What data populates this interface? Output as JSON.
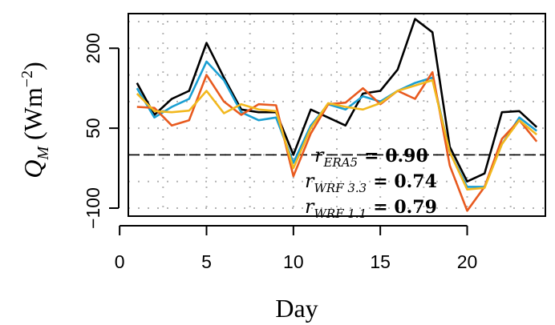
{
  "chart_data": {
    "type": "line",
    "xlabel": "Day",
    "ylabel_parts": {
      "symbol": "Q",
      "subscript": "M",
      "unit_open": "(Wm",
      "unit_exp": "−2",
      "unit_close": ")"
    },
    "xlim": [
      0.5,
      24.5
    ],
    "ylim": [
      -115,
      265
    ],
    "xticks": [
      0,
      5,
      10,
      15,
      20
    ],
    "yticks": [
      -100,
      50,
      200
    ],
    "ytick_labels": [
      "−100",
      "50",
      "200"
    ],
    "grid": true,
    "zero_line": true,
    "series": [
      {
        "color": "#000000",
        "x": [
          1,
          2,
          3,
          4,
          5,
          6,
          7,
          8,
          9,
          10,
          11,
          12,
          13,
          14,
          15,
          16,
          17,
          18,
          19,
          20,
          21,
          22,
          23,
          24
        ],
        "y": [
          135,
          75,
          105,
          120,
          210,
          145,
          85,
          80,
          80,
          0,
          85,
          70,
          55,
          115,
          120,
          160,
          255,
          230,
          15,
          -50,
          -35,
          80,
          82,
          52
        ]
      },
      {
        "color": "#1a9fd2",
        "x": [
          1,
          2,
          3,
          4,
          5,
          6,
          7,
          8,
          9,
          10,
          11,
          12,
          13,
          14,
          15,
          16,
          17,
          18,
          19,
          20,
          21,
          22,
          23,
          24
        ],
        "y": [
          125,
          70,
          90,
          105,
          175,
          140,
          80,
          65,
          70,
          -15,
          55,
          95,
          85,
          110,
          100,
          120,
          135,
          145,
          5,
          -60,
          -60,
          20,
          70,
          45
        ]
      },
      {
        "color": "#e85a1f",
        "x": [
          1,
          2,
          3,
          4,
          5,
          6,
          7,
          8,
          9,
          10,
          11,
          12,
          13,
          14,
          15,
          16,
          17,
          18,
          19,
          20,
          21,
          22,
          23,
          24
        ],
        "y": [
          90,
          88,
          55,
          65,
          150,
          100,
          75,
          95,
          93,
          -40,
          40,
          95,
          98,
          125,
          95,
          120,
          105,
          155,
          -20,
          -105,
          -60,
          30,
          65,
          25
        ]
      },
      {
        "color": "#f2b81e",
        "x": [
          1,
          2,
          3,
          4,
          5,
          6,
          7,
          8,
          9,
          10,
          11,
          12,
          13,
          14,
          15,
          16,
          17,
          18,
          19,
          20,
          21,
          22,
          23,
          24
        ],
        "y": [
          115,
          82,
          80,
          83,
          120,
          78,
          95,
          85,
          82,
          -25,
          50,
          97,
          90,
          85,
          97,
          120,
          130,
          140,
          5,
          -65,
          -62,
          20,
          65,
          38
        ]
      }
    ],
    "annotations": [
      {
        "name": "r",
        "sub": "ERA5",
        "value": "= 0.90"
      },
      {
        "name": "r",
        "sub": "WRF 3.3",
        "value": "= 0.74"
      },
      {
        "name": "r",
        "sub": "WRF 1.1",
        "value": "= 0.79"
      }
    ]
  }
}
